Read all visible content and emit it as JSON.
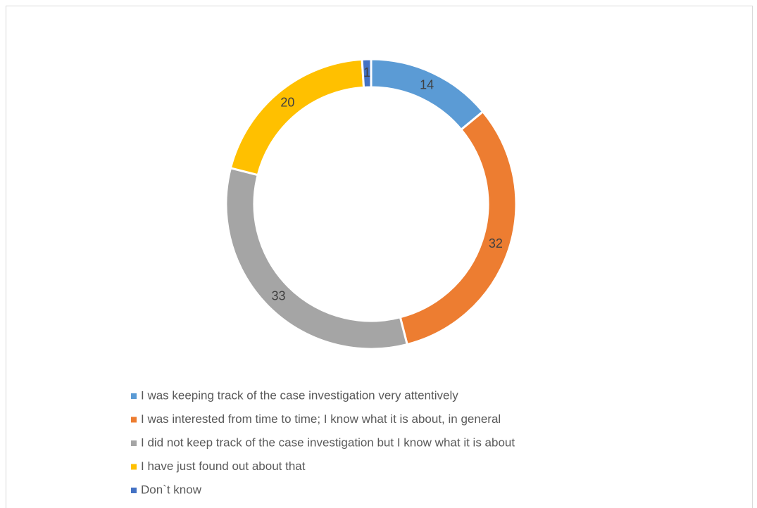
{
  "chart_data": {
    "type": "donut",
    "categories": [
      "I was keeping track of the case investigation very attentively",
      "I was interested from time to time; I know what it is about, in general",
      "I did not keep track of the case investigation but I know what it is about",
      "I have just found out about that",
      "Don`t know"
    ],
    "values": [
      14,
      32,
      33,
      20,
      1
    ],
    "colors": [
      "#5b9bd5",
      "#ed7d31",
      "#a5a5a5",
      "#ffc000",
      "#4472c4"
    ],
    "legend": "bottom"
  }
}
